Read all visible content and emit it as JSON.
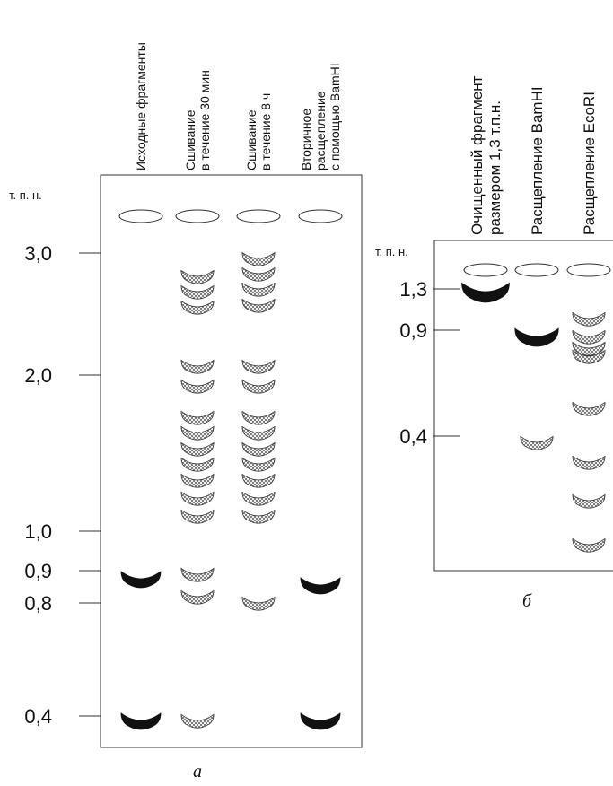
{
  "panel_a": {
    "lanes": [
      [
        "Исходные фрагменты"
      ],
      [
        "Сшивание",
        "в течение 30 мин"
      ],
      [
        "Сшивание",
        "в течение 8 ч"
      ],
      [
        "Вторичное",
        "расщепление",
        "с помощью BamHI"
      ]
    ],
    "unit": "т. п. н.",
    "ticks": [
      "3,0",
      "2,0",
      "1,0",
      "0,9",
      "0,8",
      "0,4"
    ],
    "caption": "а"
  },
  "panel_b": {
    "lanes": [
      [
        "Очищенный фрагмент",
        "размером 1,3 т.п.н."
      ],
      [
        "Расщепление BamHI"
      ],
      [
        "Расщепление EcoRI"
      ]
    ],
    "unit": "т. п. н.",
    "ticks": [
      "1,3",
      "0,9",
      "0,4"
    ],
    "caption": "б"
  }
}
